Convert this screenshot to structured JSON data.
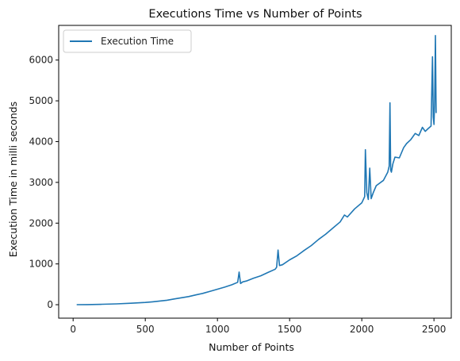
{
  "chart_data": {
    "type": "line",
    "title": "Executions Time vs Number of Points",
    "xlabel": "Number of Points",
    "ylabel": "Execution Time in milli seconds",
    "xlim": [
      -100,
      2620
    ],
    "ylim": [
      -330,
      6850
    ],
    "xticks": [
      0,
      500,
      1000,
      1500,
      2000,
      2500
    ],
    "yticks": [
      0,
      1000,
      2000,
      3000,
      4000,
      5000,
      6000
    ],
    "grid": false,
    "legend_position": "upper-left",
    "colors": {
      "series": "#1f77b4",
      "axis": "#000000"
    },
    "series": [
      {
        "name": "Execution Time",
        "x": [
          25,
          100,
          200,
          300,
          400,
          500,
          550,
          600,
          650,
          700,
          750,
          800,
          850,
          900,
          950,
          1000,
          1050,
          1100,
          1140,
          1150,
          1160,
          1175,
          1200,
          1250,
          1300,
          1350,
          1400,
          1410,
          1420,
          1430,
          1450,
          1500,
          1550,
          1600,
          1650,
          1700,
          1750,
          1800,
          1850,
          1880,
          1900,
          1950,
          2000,
          2020,
          2025,
          2035,
          2045,
          2055,
          2065,
          2080,
          2100,
          2150,
          2180,
          2190,
          2195,
          2200,
          2205,
          2215,
          2230,
          2260,
          2290,
          2310,
          2340,
          2370,
          2395,
          2420,
          2440,
          2460,
          2480,
          2490,
          2495,
          2500,
          2505,
          2510,
          2515
        ],
        "values": [
          0,
          3,
          10,
          20,
          35,
          55,
          70,
          90,
          110,
          140,
          170,
          200,
          240,
          280,
          330,
          380,
          430,
          490,
          550,
          800,
          520,
          560,
          580,
          650,
          710,
          790,
          870,
          920,
          1340,
          960,
          980,
          1100,
          1200,
          1330,
          1450,
          1600,
          1730,
          1880,
          2030,
          2200,
          2150,
          2350,
          2500,
          2650,
          3800,
          2750,
          2580,
          3350,
          2600,
          2750,
          2920,
          3050,
          3250,
          3400,
          4950,
          3300,
          3250,
          3450,
          3620,
          3600,
          3850,
          3950,
          4050,
          4200,
          4150,
          4350,
          4250,
          4320,
          4380,
          6080,
          4600,
          4420,
          5050,
          6600,
          4700
        ]
      }
    ]
  }
}
